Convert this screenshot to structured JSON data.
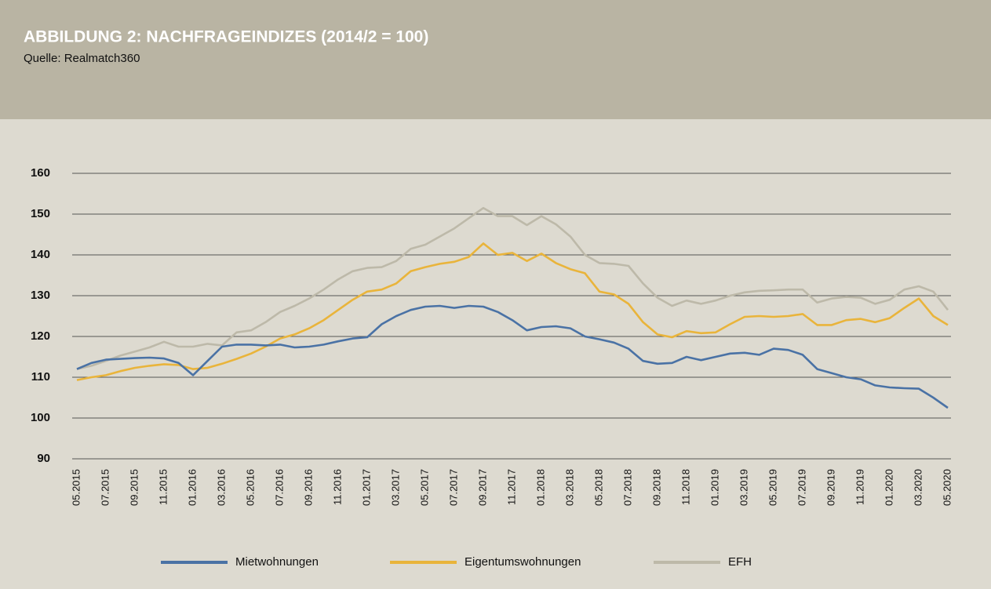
{
  "chart_data": {
    "type": "line",
    "title": "ABBILDUNG 2: NACHFRAGEINDIZES (2014/2 = 100)",
    "subtitle": "Quelle: Realmatch360",
    "categories": [
      "05.2015",
      null,
      "07.2015",
      null,
      "09.2015",
      null,
      "11.2015",
      null,
      "01.2016",
      null,
      "03.2016",
      null,
      "05.2016",
      null,
      "07.2016",
      null,
      "09.2016",
      null,
      "11.2016",
      null,
      "01.2017",
      null,
      "03.2017",
      null,
      "05.2017",
      null,
      "07.2017",
      null,
      "09.2017",
      null,
      "11.2017",
      null,
      "01.2018",
      null,
      "03.2018",
      null,
      "05.2018",
      null,
      "07.2018",
      null,
      "09.2018",
      null,
      "11.2018",
      null,
      "01.2019",
      null,
      "03.2019",
      null,
      "05.2019",
      null,
      "07.2019",
      null,
      "09.2019",
      null,
      "11.2019",
      null,
      "01.2020",
      null,
      "03.2020",
      null,
      "05.2020"
    ],
    "series": [
      {
        "name": "Mietwohnungen",
        "color": "#4a72a5",
        "values": [
          112,
          113.5,
          114.3,
          114.5,
          114.7,
          114.8,
          114.6,
          113.5,
          110.5,
          114,
          117.5,
          118,
          118,
          117.8,
          118,
          117.3,
          117.5,
          118,
          118.8,
          119.5,
          119.8,
          123,
          125,
          126.5,
          127.3,
          127.5,
          127,
          127.5,
          127.3,
          126,
          124,
          121.5,
          122.3,
          122.5,
          122,
          120,
          119.3,
          118.5,
          117,
          114,
          113.3,
          113.5,
          115,
          114.2,
          115,
          115.8,
          116,
          115.5,
          117,
          116.7,
          115.5,
          112,
          111,
          110,
          109.5,
          108,
          107.5,
          107.3,
          107.2,
          105,
          102.5
        ]
      },
      {
        "name": "Eigentumswohnungen",
        "color": "#e9b43b",
        "values": [
          109.3,
          110,
          110.5,
          111.5,
          112.3,
          112.8,
          113.2,
          113,
          112,
          112.3,
          113.3,
          114.5,
          115.8,
          117.5,
          119.5,
          120.5,
          122,
          124,
          126.5,
          129,
          131,
          131.5,
          133,
          136,
          137,
          137.8,
          138.3,
          139.5,
          142.8,
          140,
          140.5,
          138.5,
          140.3,
          138,
          136.5,
          135.5,
          131,
          130.3,
          128,
          123.5,
          120.5,
          119.8,
          121.3,
          120.8,
          121,
          123,
          124.8,
          125,
          124.8,
          125,
          125.5,
          122.8,
          122.8,
          124,
          124.3,
          123.5,
          124.5,
          127,
          129.3,
          125,
          122.8
        ]
      },
      {
        "name": "EFH",
        "color": "#bdb9a9",
        "values": [
          112,
          112.8,
          114,
          115.3,
          116.3,
          117.3,
          118.7,
          117.5,
          117.5,
          118.2,
          117.8,
          121,
          121.5,
          123.5,
          126,
          127.5,
          129.3,
          131.5,
          134,
          136,
          136.8,
          137,
          138.5,
          141.5,
          142.5,
          144.5,
          146.5,
          149,
          151.5,
          149.5,
          149.5,
          147.3,
          149.5,
          147.5,
          144.5,
          140,
          138,
          137.8,
          137.3,
          133,
          129.5,
          127.5,
          128.8,
          128,
          128.8,
          130,
          130.8,
          131.2,
          131.3,
          131.5,
          131.5,
          128.3,
          129.3,
          129.7,
          129.5,
          128,
          129,
          131.5,
          132.3,
          131,
          126.5
        ]
      }
    ],
    "ylim": [
      90,
      160
    ],
    "yticks": [
      90,
      100,
      110,
      120,
      130,
      140,
      150,
      160
    ],
    "grid": true
  }
}
